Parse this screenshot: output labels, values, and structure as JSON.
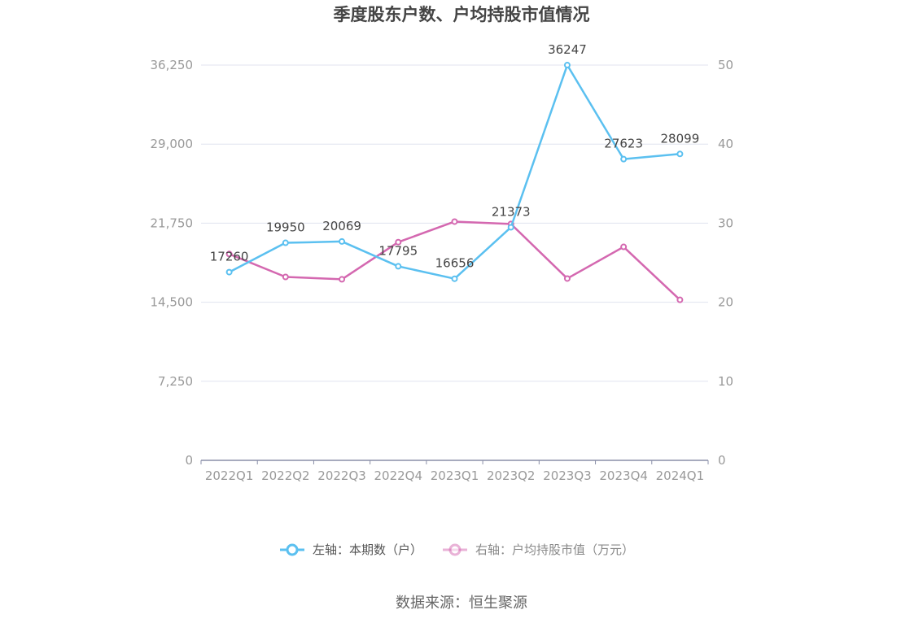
{
  "chart_data": {
    "type": "line",
    "title": "季度股东户数、户均持股市值情况",
    "categories": [
      "2022Q1",
      "2022Q2",
      "2022Q3",
      "2022Q4",
      "2023Q1",
      "2023Q2",
      "2023Q3",
      "2023Q4",
      "2024Q1"
    ],
    "left_axis": {
      "min": 0,
      "max": 36250,
      "ticks": [
        "0",
        "7,250",
        "14,500",
        "21,750",
        "29,000",
        "36,250"
      ],
      "tick_values": [
        0,
        7250,
        14500,
        21750,
        29000,
        36250
      ]
    },
    "right_axis": {
      "min": 0,
      "max": 50,
      "ticks": [
        "0",
        "10",
        "20",
        "30",
        "40",
        "50"
      ],
      "tick_values": [
        0,
        10,
        20,
        30,
        40,
        50
      ]
    },
    "series": [
      {
        "name": "左轴：本期数（户）",
        "axis": "left",
        "color": "#5bc0f0",
        "values": [
          17260,
          19950,
          20069,
          17795,
          16656,
          21373,
          36247,
          27623,
          28099
        ],
        "labels": [
          "17260",
          "19950",
          "20069",
          "17795",
          "16656",
          "21373",
          "36247",
          "27623",
          "28099"
        ]
      },
      {
        "name": "右轴：户均持股市值（万元）",
        "axis": "right",
        "color": "#d468b0",
        "values": [
          26.1,
          23.2,
          22.9,
          27.6,
          30.2,
          29.9,
          23.0,
          27.0,
          20.3
        ]
      }
    ],
    "grid": true,
    "legend": "bottom",
    "source": "数据来源：恒生聚源"
  }
}
